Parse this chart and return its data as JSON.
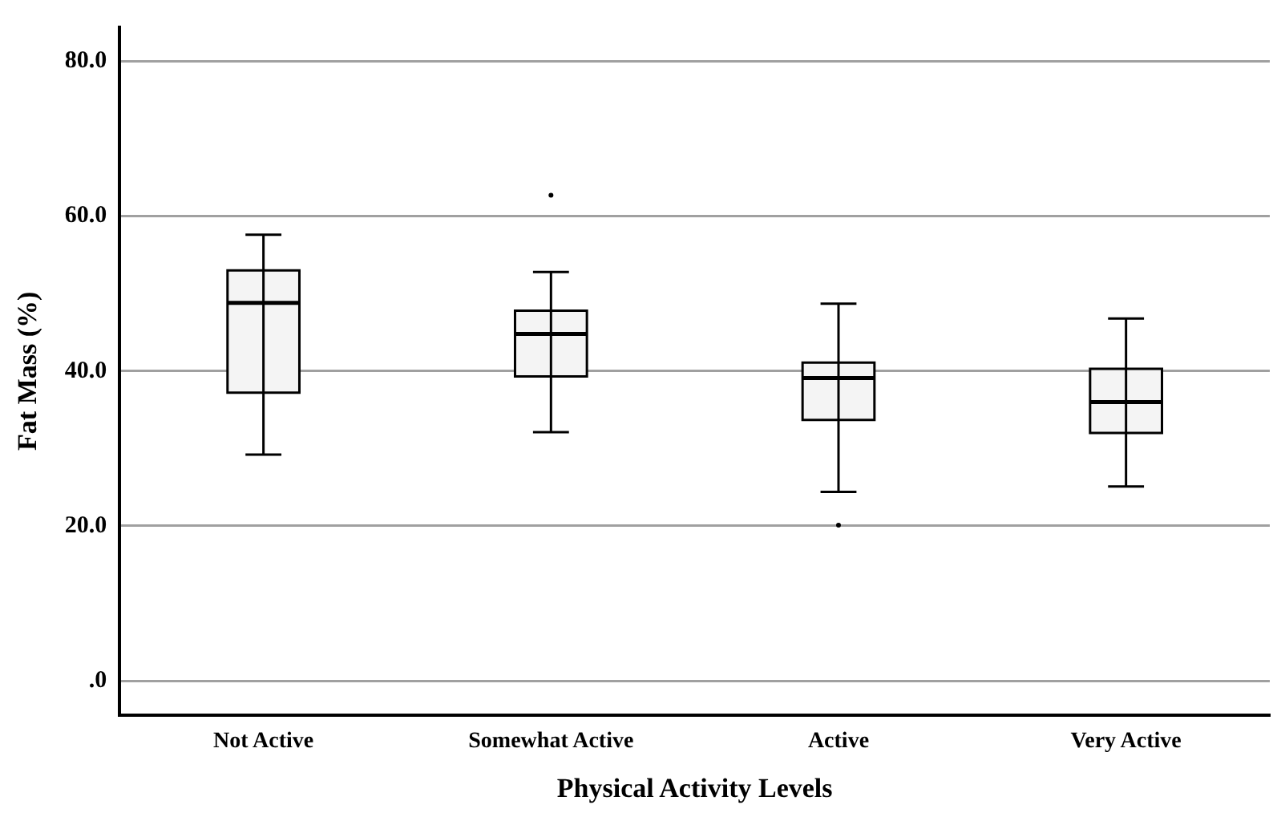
{
  "chart_data": {
    "type": "box",
    "xlabel": "Physical Activity Levels",
    "ylabel": "Fat Mass (%)",
    "categories": [
      "Not Active",
      "Somewhat Active",
      "Active",
      "Very Active"
    ],
    "boxes": [
      {
        "low": 29.2,
        "q1": 37.2,
        "median": 48.8,
        "q3": 53.0,
        "high": 57.6
      },
      {
        "low": 32.1,
        "q1": 39.3,
        "median": 44.8,
        "q3": 47.8,
        "high": 52.8,
        "outliers": [
          62.7
        ]
      },
      {
        "low": 24.4,
        "q1": 33.7,
        "median": 39.1,
        "q3": 41.1,
        "high": 48.7,
        "outliers": [
          20.1
        ]
      },
      {
        "low": 25.1,
        "q1": 32.0,
        "median": 36.0,
        "q3": 40.3,
        "high": 46.8
      }
    ],
    "ylim": [
      -4.4,
      84.4
    ],
    "yticks": [
      {
        "value": 0,
        "label": ".0"
      },
      {
        "value": 20,
        "label": "20.0"
      },
      {
        "value": 40,
        "label": "40.0"
      },
      {
        "value": 60,
        "label": "60.0"
      },
      {
        "value": 80,
        "label": "80.0"
      }
    ],
    "grid": "y"
  }
}
